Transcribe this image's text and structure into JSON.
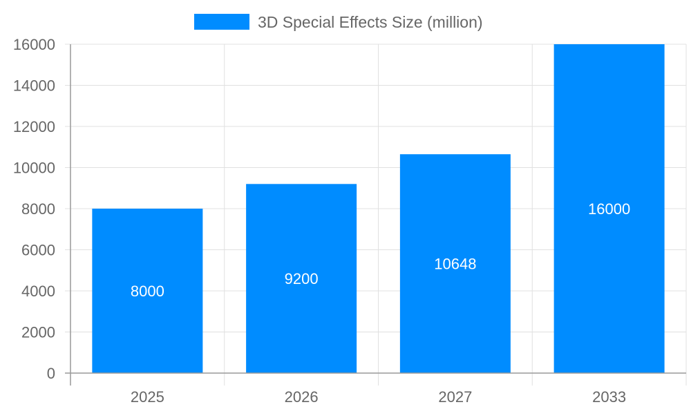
{
  "chart_data": {
    "type": "bar",
    "title": "",
    "xlabel": "",
    "ylabel": "",
    "categories": [
      "2025",
      "2026",
      "2027",
      "2033"
    ],
    "series": [
      {
        "name": "3D Special Effects Size (million)",
        "values": [
          8000,
          9200,
          10648,
          16000
        ],
        "color": "#008cff"
      }
    ],
    "ylim": [
      0,
      16000
    ],
    "yticks": [
      0,
      2000,
      4000,
      6000,
      8000,
      10000,
      12000,
      14000,
      16000
    ],
    "grid": true,
    "legend_position": "top",
    "data_labels": true,
    "data_label_color": "#ffffff",
    "text_color": "#666666",
    "grid_color": "#e0e0e0"
  }
}
